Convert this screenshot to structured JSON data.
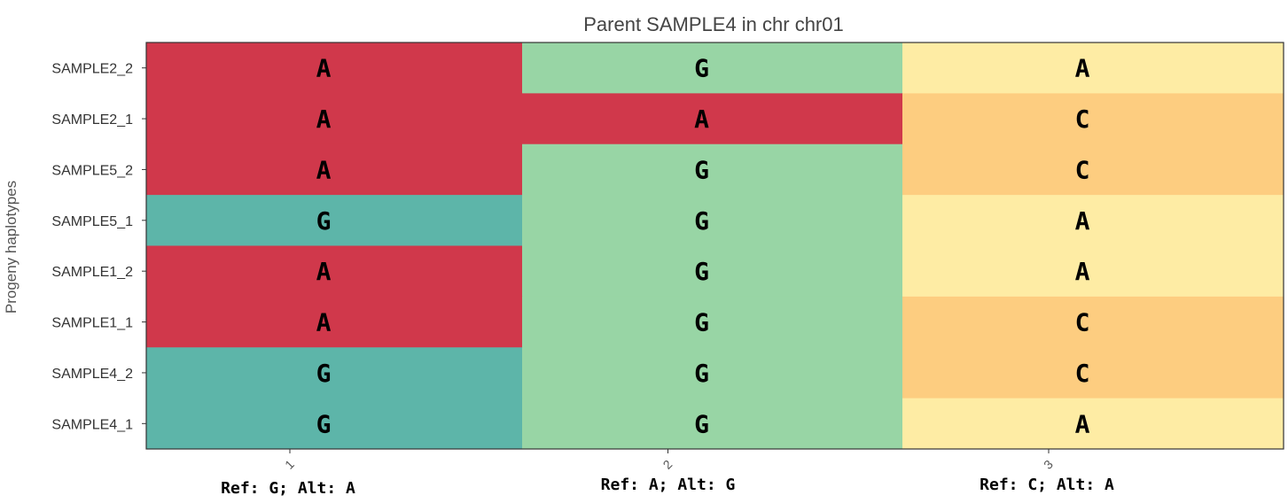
{
  "chart_data": {
    "type": "heatmap",
    "title": "Parent SAMPLE4 in chr chr01",
    "ylabel": "Progeny haplotypes",
    "xlabel": "",
    "rows": [
      "SAMPLE2_2",
      "SAMPLE2_1",
      "SAMPLE5_2",
      "SAMPLE5_1",
      "SAMPLE1_2",
      "SAMPLE1_1",
      "SAMPLE4_2",
      "SAMPLE4_1"
    ],
    "columns": [
      "1",
      "2",
      "3"
    ],
    "ref_alt": [
      "Ref: G; Alt: A",
      "Ref: A; Alt: G",
      "Ref: C; Alt: A"
    ],
    "alleles": [
      [
        "A",
        "G",
        "A"
      ],
      [
        "A",
        "A",
        "C"
      ],
      [
        "A",
        "G",
        "C"
      ],
      [
        "G",
        "G",
        "A"
      ],
      [
        "A",
        "G",
        "A"
      ],
      [
        "A",
        "G",
        "C"
      ],
      [
        "G",
        "G",
        "C"
      ],
      [
        "G",
        "G",
        "A"
      ]
    ],
    "palette": {
      "col1": {
        "A": "#d0384b",
        "G": "#5db5a9"
      },
      "col2": {
        "A": "#d0384b",
        "G": "#98d5a5"
      },
      "col3": {
        "A": "#feeca4",
        "C": "#fdcd80"
      }
    },
    "grid": false,
    "legend": "none"
  }
}
